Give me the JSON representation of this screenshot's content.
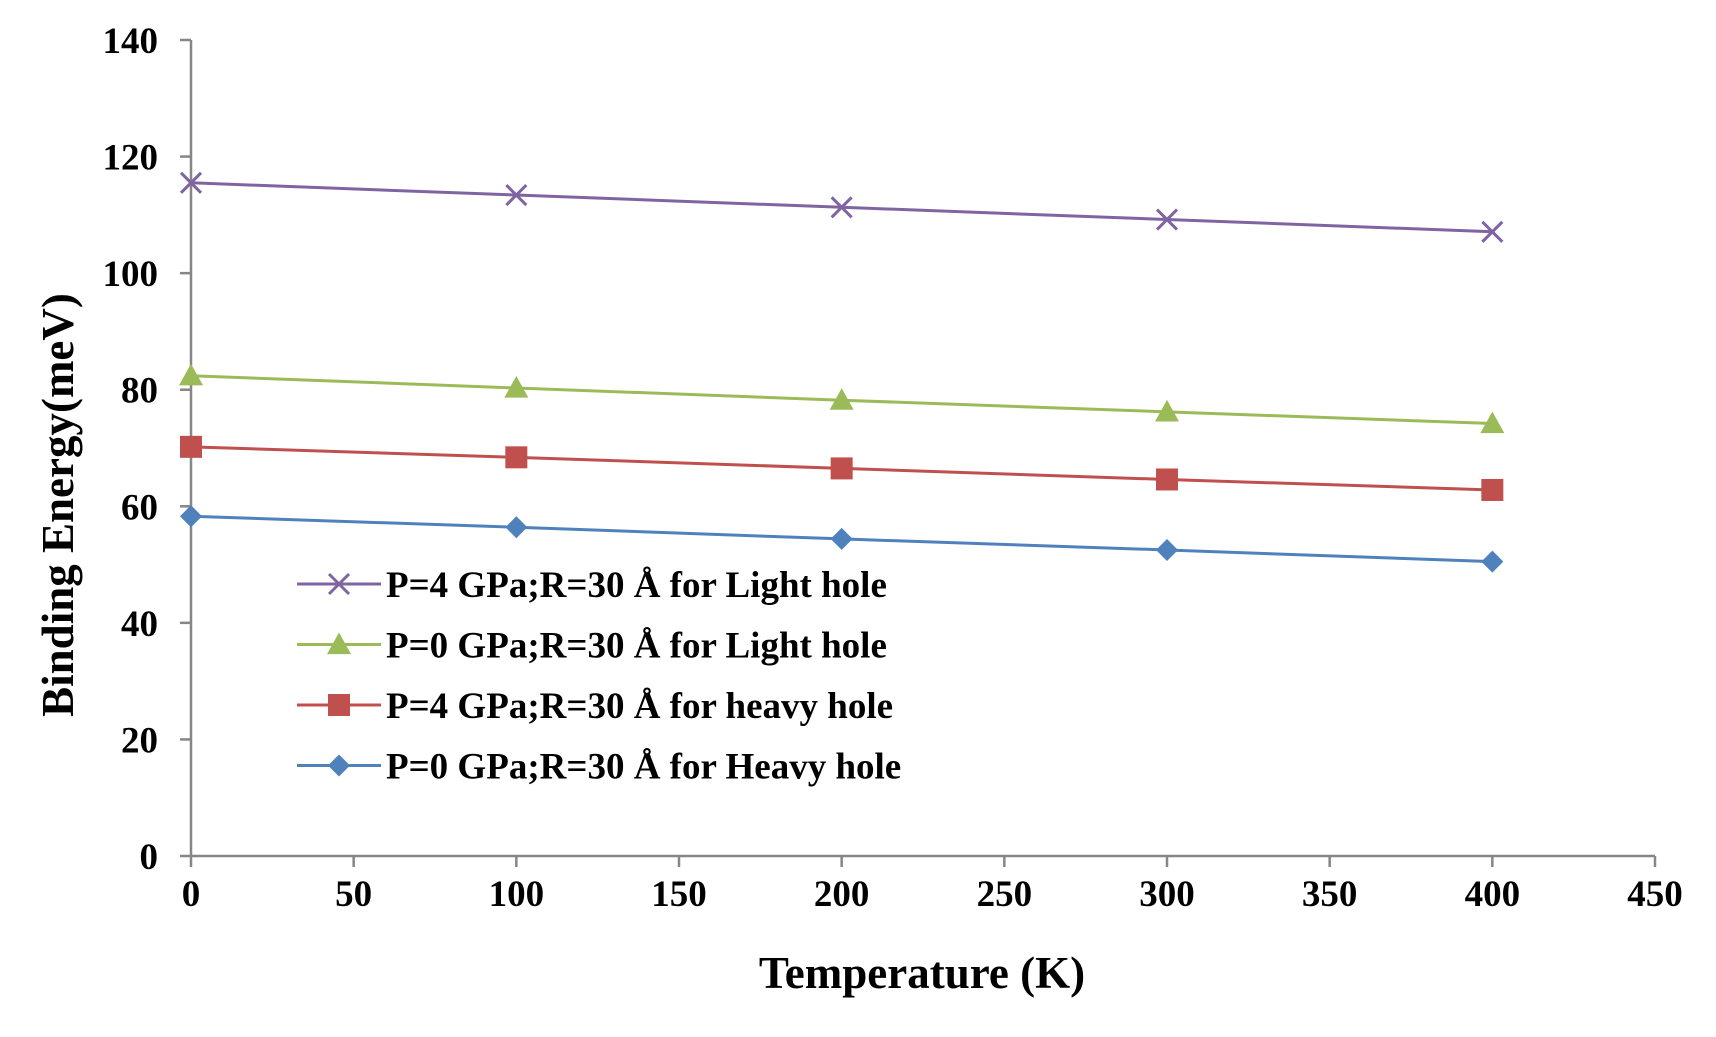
{
  "chart_data": {
    "type": "line",
    "title": "",
    "xlabel": "Temperature (K)",
    "ylabel": "Binding Energy(meV)",
    "xlim": [
      0,
      450
    ],
    "ylim": [
      0,
      140
    ],
    "x_ticks": [
      0,
      50,
      100,
      150,
      200,
      250,
      300,
      350,
      400,
      450
    ],
    "y_ticks": [
      0,
      20,
      40,
      60,
      80,
      100,
      120,
      140
    ],
    "grid": false,
    "legend_position": "lower-left inside",
    "x": [
      0,
      100,
      200,
      300,
      400
    ],
    "series": [
      {
        "name": "P=4 GPa;R=30 Å for Light hole",
        "color": "#8064a2",
        "marker": "x",
        "values": [
          115.5,
          113.4,
          111.3,
          109.2,
          107.1
        ]
      },
      {
        "name": "P=0 GPa;R=30 Å for Light hole",
        "color": "#9bbb59",
        "marker": "triangle",
        "values": [
          82.4,
          80.3,
          78.2,
          76.2,
          74.2
        ]
      },
      {
        "name": "P=4 GPa;R=30 Å for heavy hole",
        "color": "#c0504d",
        "marker": "square",
        "values": [
          70.2,
          68.4,
          66.5,
          64.6,
          62.8
        ]
      },
      {
        "name": "P=0 GPa;R=30 Å for Heavy hole",
        "color": "#4f81bd",
        "marker": "diamond",
        "values": [
          58.3,
          56.4,
          54.4,
          52.5,
          50.5
        ]
      }
    ]
  }
}
